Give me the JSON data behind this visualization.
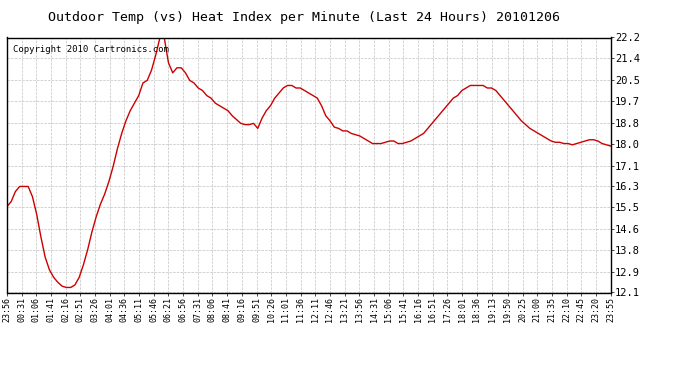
{
  "title": "Outdoor Temp (vs) Heat Index per Minute (Last 24 Hours) 20101206",
  "copyright": "Copyright 2010 Cartronics.com",
  "line_color": "#cc0000",
  "bg_color": "#ffffff",
  "plot_bg_color": "#ffffff",
  "grid_color": "#bbbbbb",
  "yticks": [
    12.1,
    12.9,
    13.8,
    14.6,
    15.5,
    16.3,
    17.1,
    18.0,
    18.8,
    19.7,
    20.5,
    21.4,
    22.2
  ],
  "ylim": [
    12.1,
    22.2
  ],
  "xtick_labels": [
    "23:56",
    "00:31",
    "01:06",
    "01:41",
    "02:16",
    "02:51",
    "03:26",
    "04:01",
    "04:36",
    "05:11",
    "05:46",
    "06:21",
    "06:56",
    "07:31",
    "08:06",
    "08:41",
    "09:16",
    "09:51",
    "10:26",
    "11:01",
    "11:36",
    "12:11",
    "12:46",
    "13:21",
    "13:56",
    "14:31",
    "15:06",
    "15:41",
    "16:16",
    "16:51",
    "17:26",
    "18:01",
    "18:36",
    "19:13",
    "19:50",
    "20:25",
    "21:00",
    "21:35",
    "22:10",
    "22:45",
    "23:20",
    "23:55"
  ],
  "data_x_minutes": [
    0,
    35,
    70,
    105,
    140,
    175,
    210,
    245,
    280,
    315,
    350,
    385,
    420,
    455,
    490,
    525,
    560,
    595,
    630,
    665,
    700,
    735,
    770,
    805,
    840,
    875,
    910,
    945,
    980,
    1015,
    1050,
    1085,
    1120,
    1157,
    1194,
    1229,
    1264,
    1299,
    1334,
    1369,
    1404,
    1439
  ],
  "data_y": [
    15.5,
    15.7,
    16.1,
    16.3,
    16.3,
    16.3,
    15.9,
    15.2,
    14.3,
    13.5,
    13.0,
    12.7,
    12.5,
    12.35,
    12.3,
    12.3,
    12.4,
    12.7,
    13.2,
    13.8,
    14.5,
    15.1,
    15.6,
    16.0,
    16.5,
    17.1,
    17.8,
    18.4,
    18.9,
    19.3,
    19.6,
    19.9,
    20.4,
    20.5,
    20.9,
    21.5,
    22.2,
    22.2,
    21.2,
    20.8,
    21.0,
    21.0,
    20.8,
    20.5,
    20.4,
    20.2,
    20.1,
    19.9,
    19.8,
    19.6,
    19.5,
    19.4,
    19.3,
    19.1,
    18.95,
    18.8,
    18.75,
    18.75,
    18.8,
    18.6,
    19.0,
    19.3,
    19.5,
    19.8,
    20.0,
    20.2,
    20.3,
    20.3,
    20.2,
    20.2,
    20.1,
    20.0,
    19.9,
    19.8,
    19.5,
    19.1,
    18.9,
    18.65,
    18.6,
    18.5,
    18.5,
    18.4,
    18.35,
    18.3,
    18.2,
    18.1,
    18.0,
    18.0,
    18.0,
    18.05,
    18.1,
    18.1,
    18.0,
    18.0,
    18.05,
    18.1,
    18.2,
    18.3,
    18.4,
    18.6,
    18.8,
    19.0,
    19.2,
    19.4,
    19.6,
    19.8,
    19.9,
    20.1,
    20.2,
    20.3,
    20.3,
    20.3,
    20.3,
    20.2,
    20.2,
    20.1,
    19.9,
    19.7,
    19.5,
    19.3,
    19.1,
    18.9,
    18.75,
    18.6,
    18.5,
    18.4,
    18.3,
    18.2,
    18.1,
    18.05,
    18.05,
    18.0,
    18.0,
    17.95,
    18.0,
    18.05,
    18.1,
    18.15,
    18.15,
    18.1,
    18.0,
    17.95,
    17.9
  ],
  "n_data": 143
}
